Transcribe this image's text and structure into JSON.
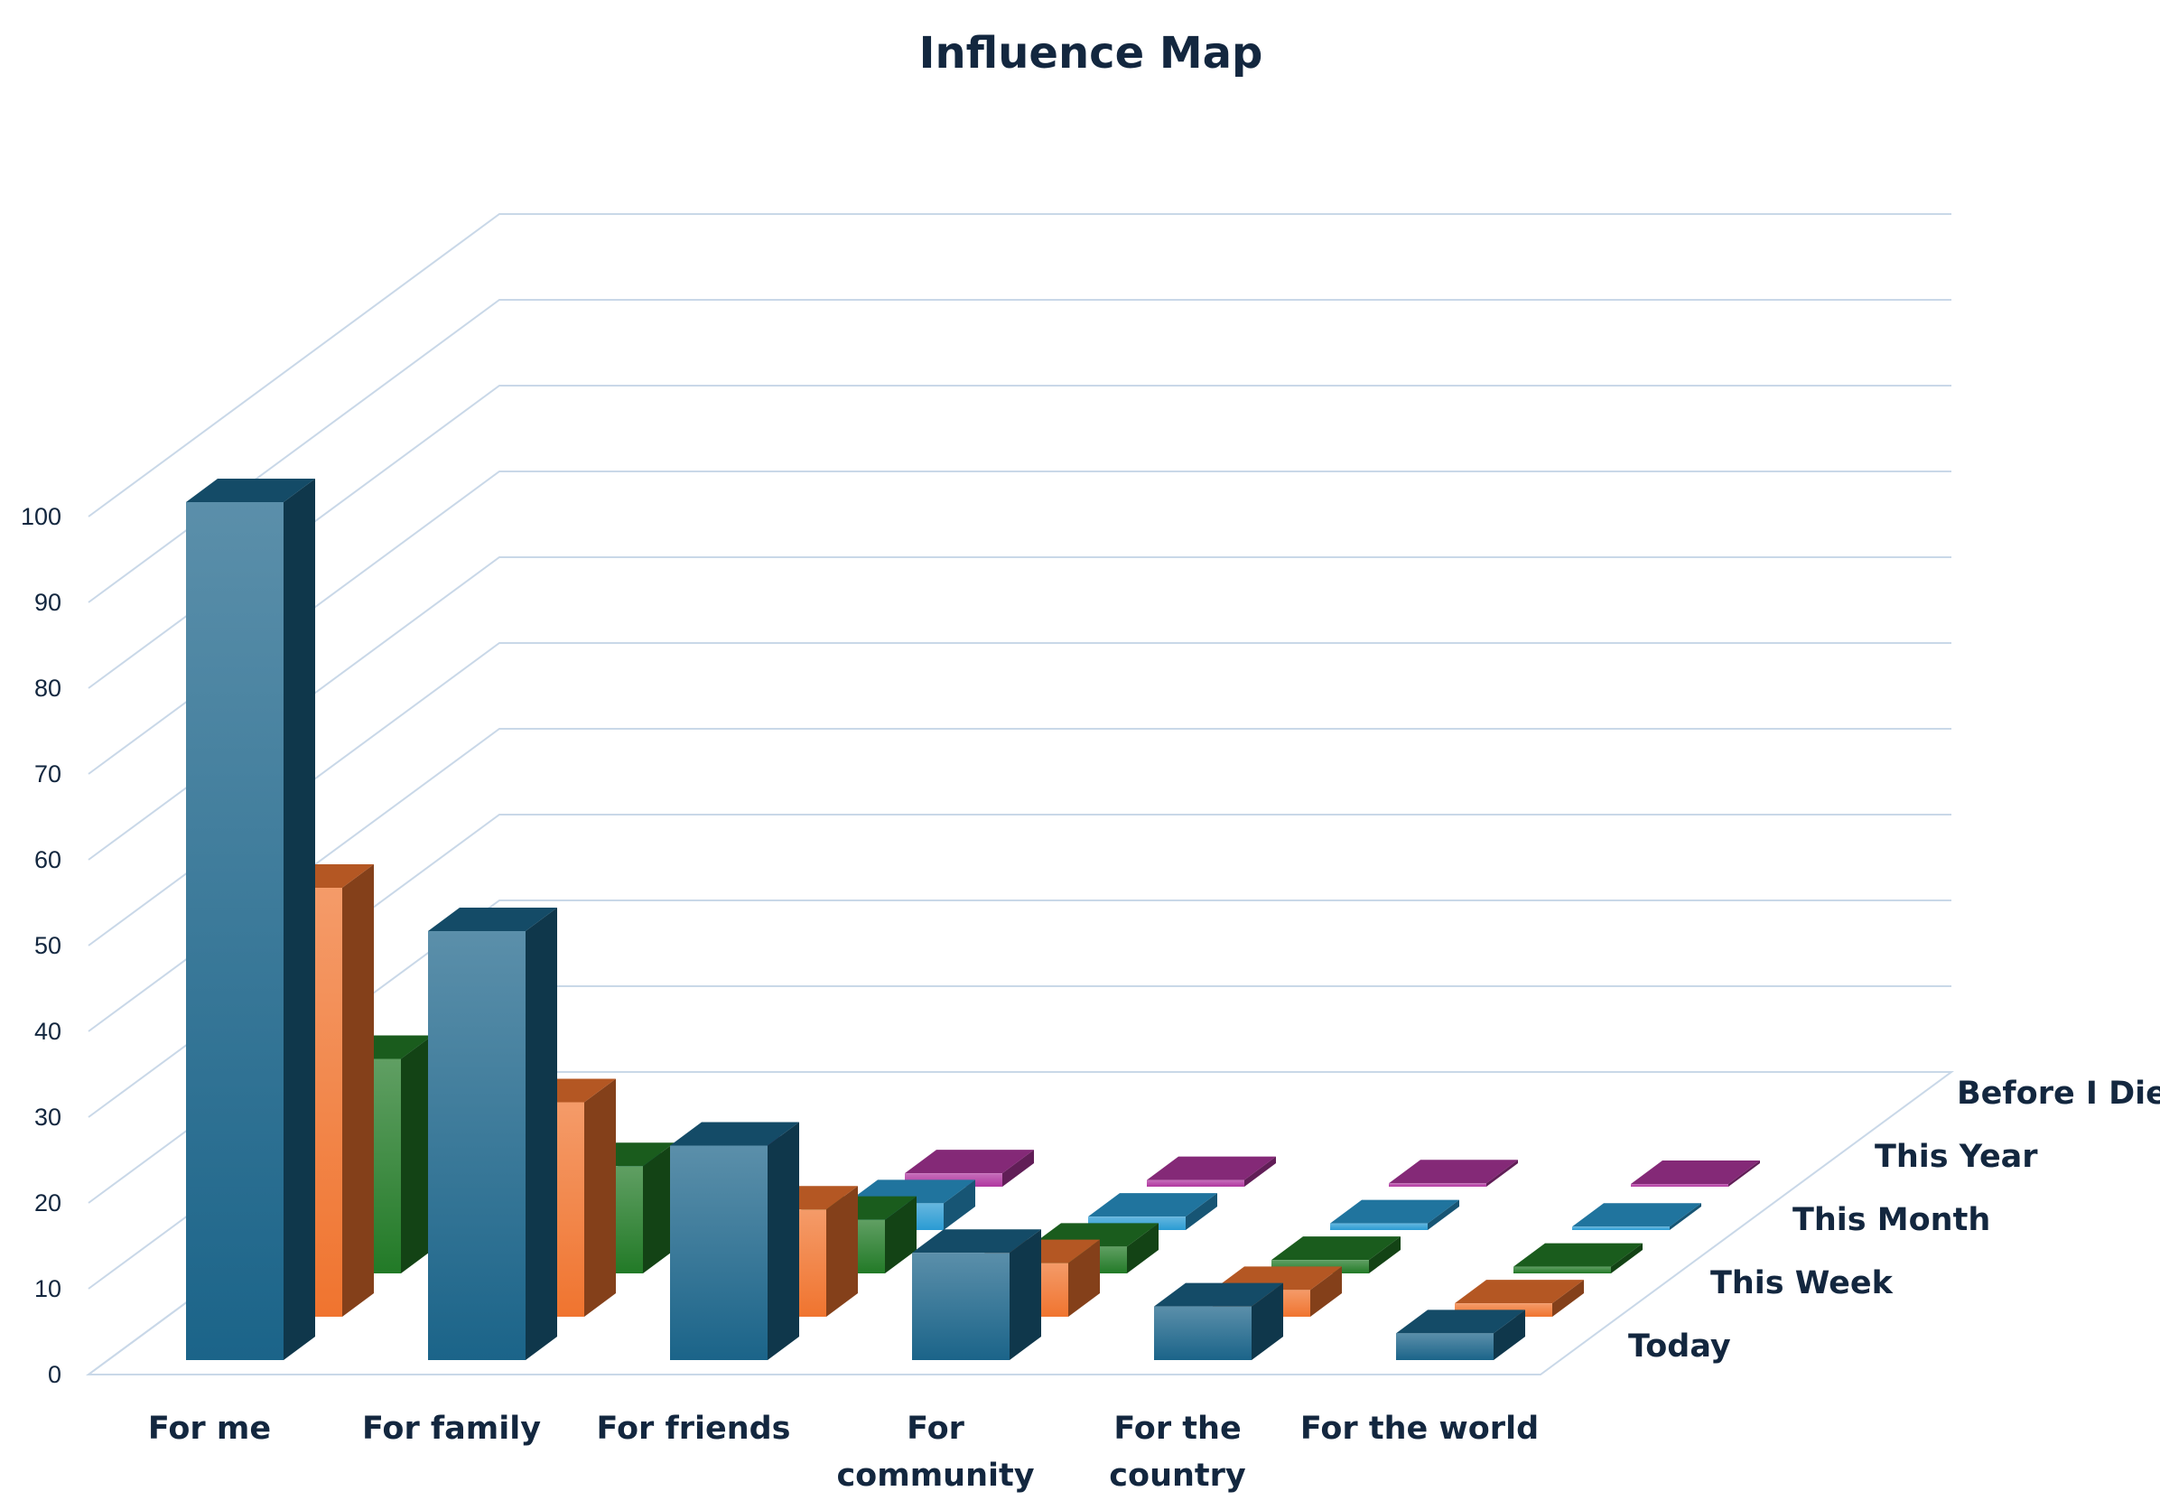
{
  "chart_data": {
    "type": "bar",
    "variant": "3d-column",
    "title": "Influence Map",
    "categories": [
      "For me",
      "For family",
      "For friends",
      "For community",
      "For the country",
      "For the world"
    ],
    "series": [
      {
        "name": "Today",
        "values": [
          100,
          50,
          25,
          12.5,
          6.25,
          3.125
        ]
      },
      {
        "name": "This Week",
        "values": [
          50,
          25,
          12.5,
          6.25,
          3.125,
          1.5625
        ]
      },
      {
        "name": "This Month",
        "values": [
          25,
          12.5,
          6.25,
          3.125,
          1.5625,
          0.78125
        ]
      },
      {
        "name": "This Year",
        "values": [
          12.5,
          6.25,
          3.125,
          1.5625,
          0.78125,
          0.390625
        ]
      },
      {
        "name": "Before I Die",
        "values": [
          6.25,
          3.125,
          1.5625,
          0.78125,
          0.390625,
          0.1953125
        ]
      }
    ],
    "ylim": [
      0,
      100
    ],
    "yticks": [
      0,
      10,
      20,
      30,
      40,
      50,
      60,
      70,
      80,
      90,
      100
    ],
    "grid": true,
    "legend": "none",
    "colors": {
      "Today": "#1b6489",
      "This Week": "#f0742f",
      "This Month": "#227a27",
      "This Year": "#2a9bd3",
      "Before I Die": "#b0369f"
    }
  }
}
